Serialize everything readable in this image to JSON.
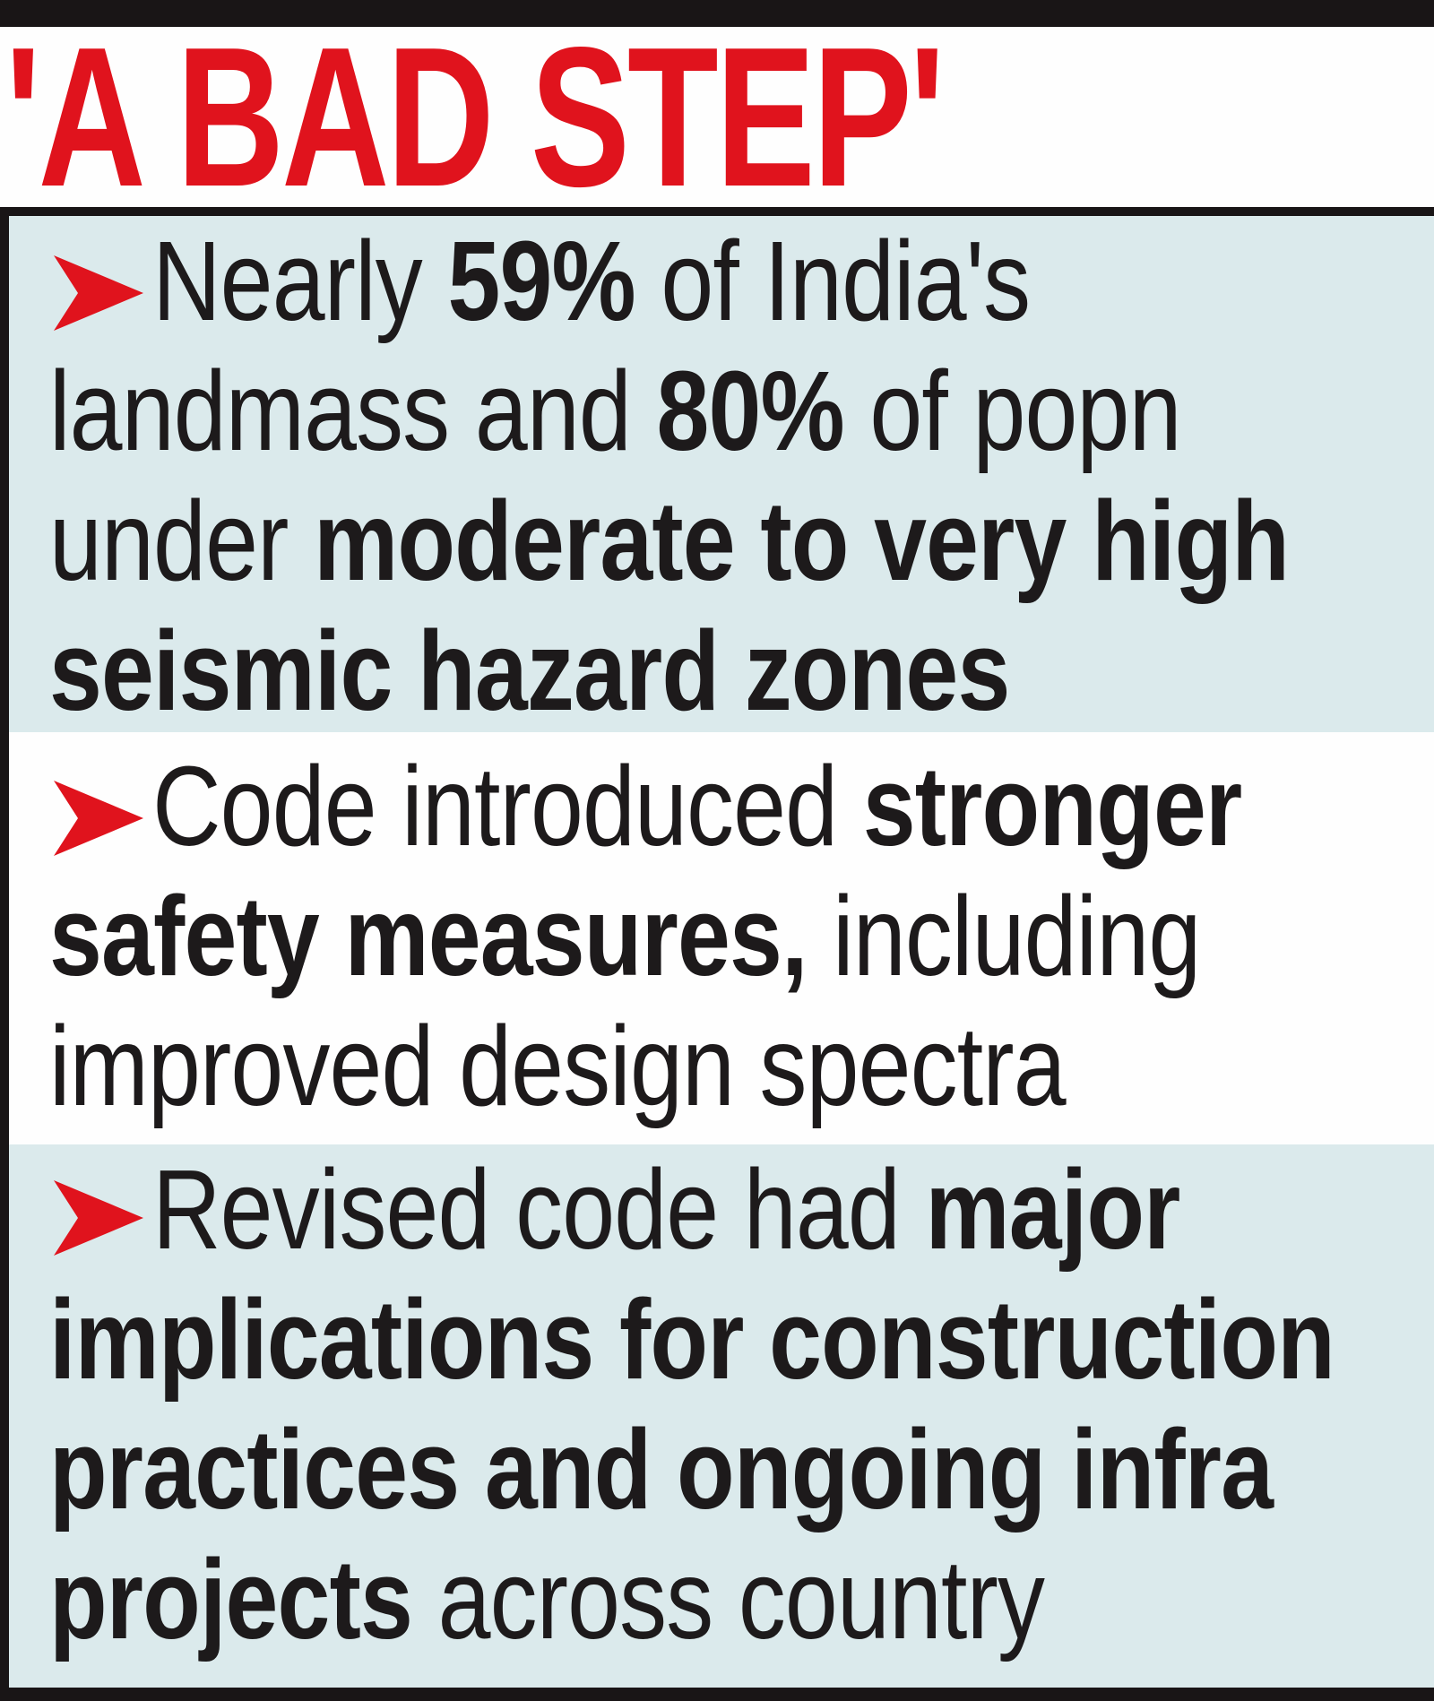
{
  "colors": {
    "accent_red": "#e0131d",
    "panel_tint": "#dbeaec",
    "bar_black": "#191516",
    "text_black": "#1d1a1b",
    "paper_white": "#fefefe"
  },
  "header": {
    "title": "'A BAD STEP'"
  },
  "bullets": [
    {
      "id": "seismic-hazard-extent",
      "text": "Nearly **59%** of India's\nlandmass and **80%** of popn\nunder **moderate to very high**\n**seismic hazard zones**"
    },
    {
      "id": "code-safety-measures",
      "text": "Code introduced **stronger**\n**safety measures,** including\nimproved design spectra"
    },
    {
      "id": "code-implications",
      "text": "Revised code had **major**\n**implications for construction**\n**practices and ongoing infra**\n**projects** across country"
    }
  ]
}
